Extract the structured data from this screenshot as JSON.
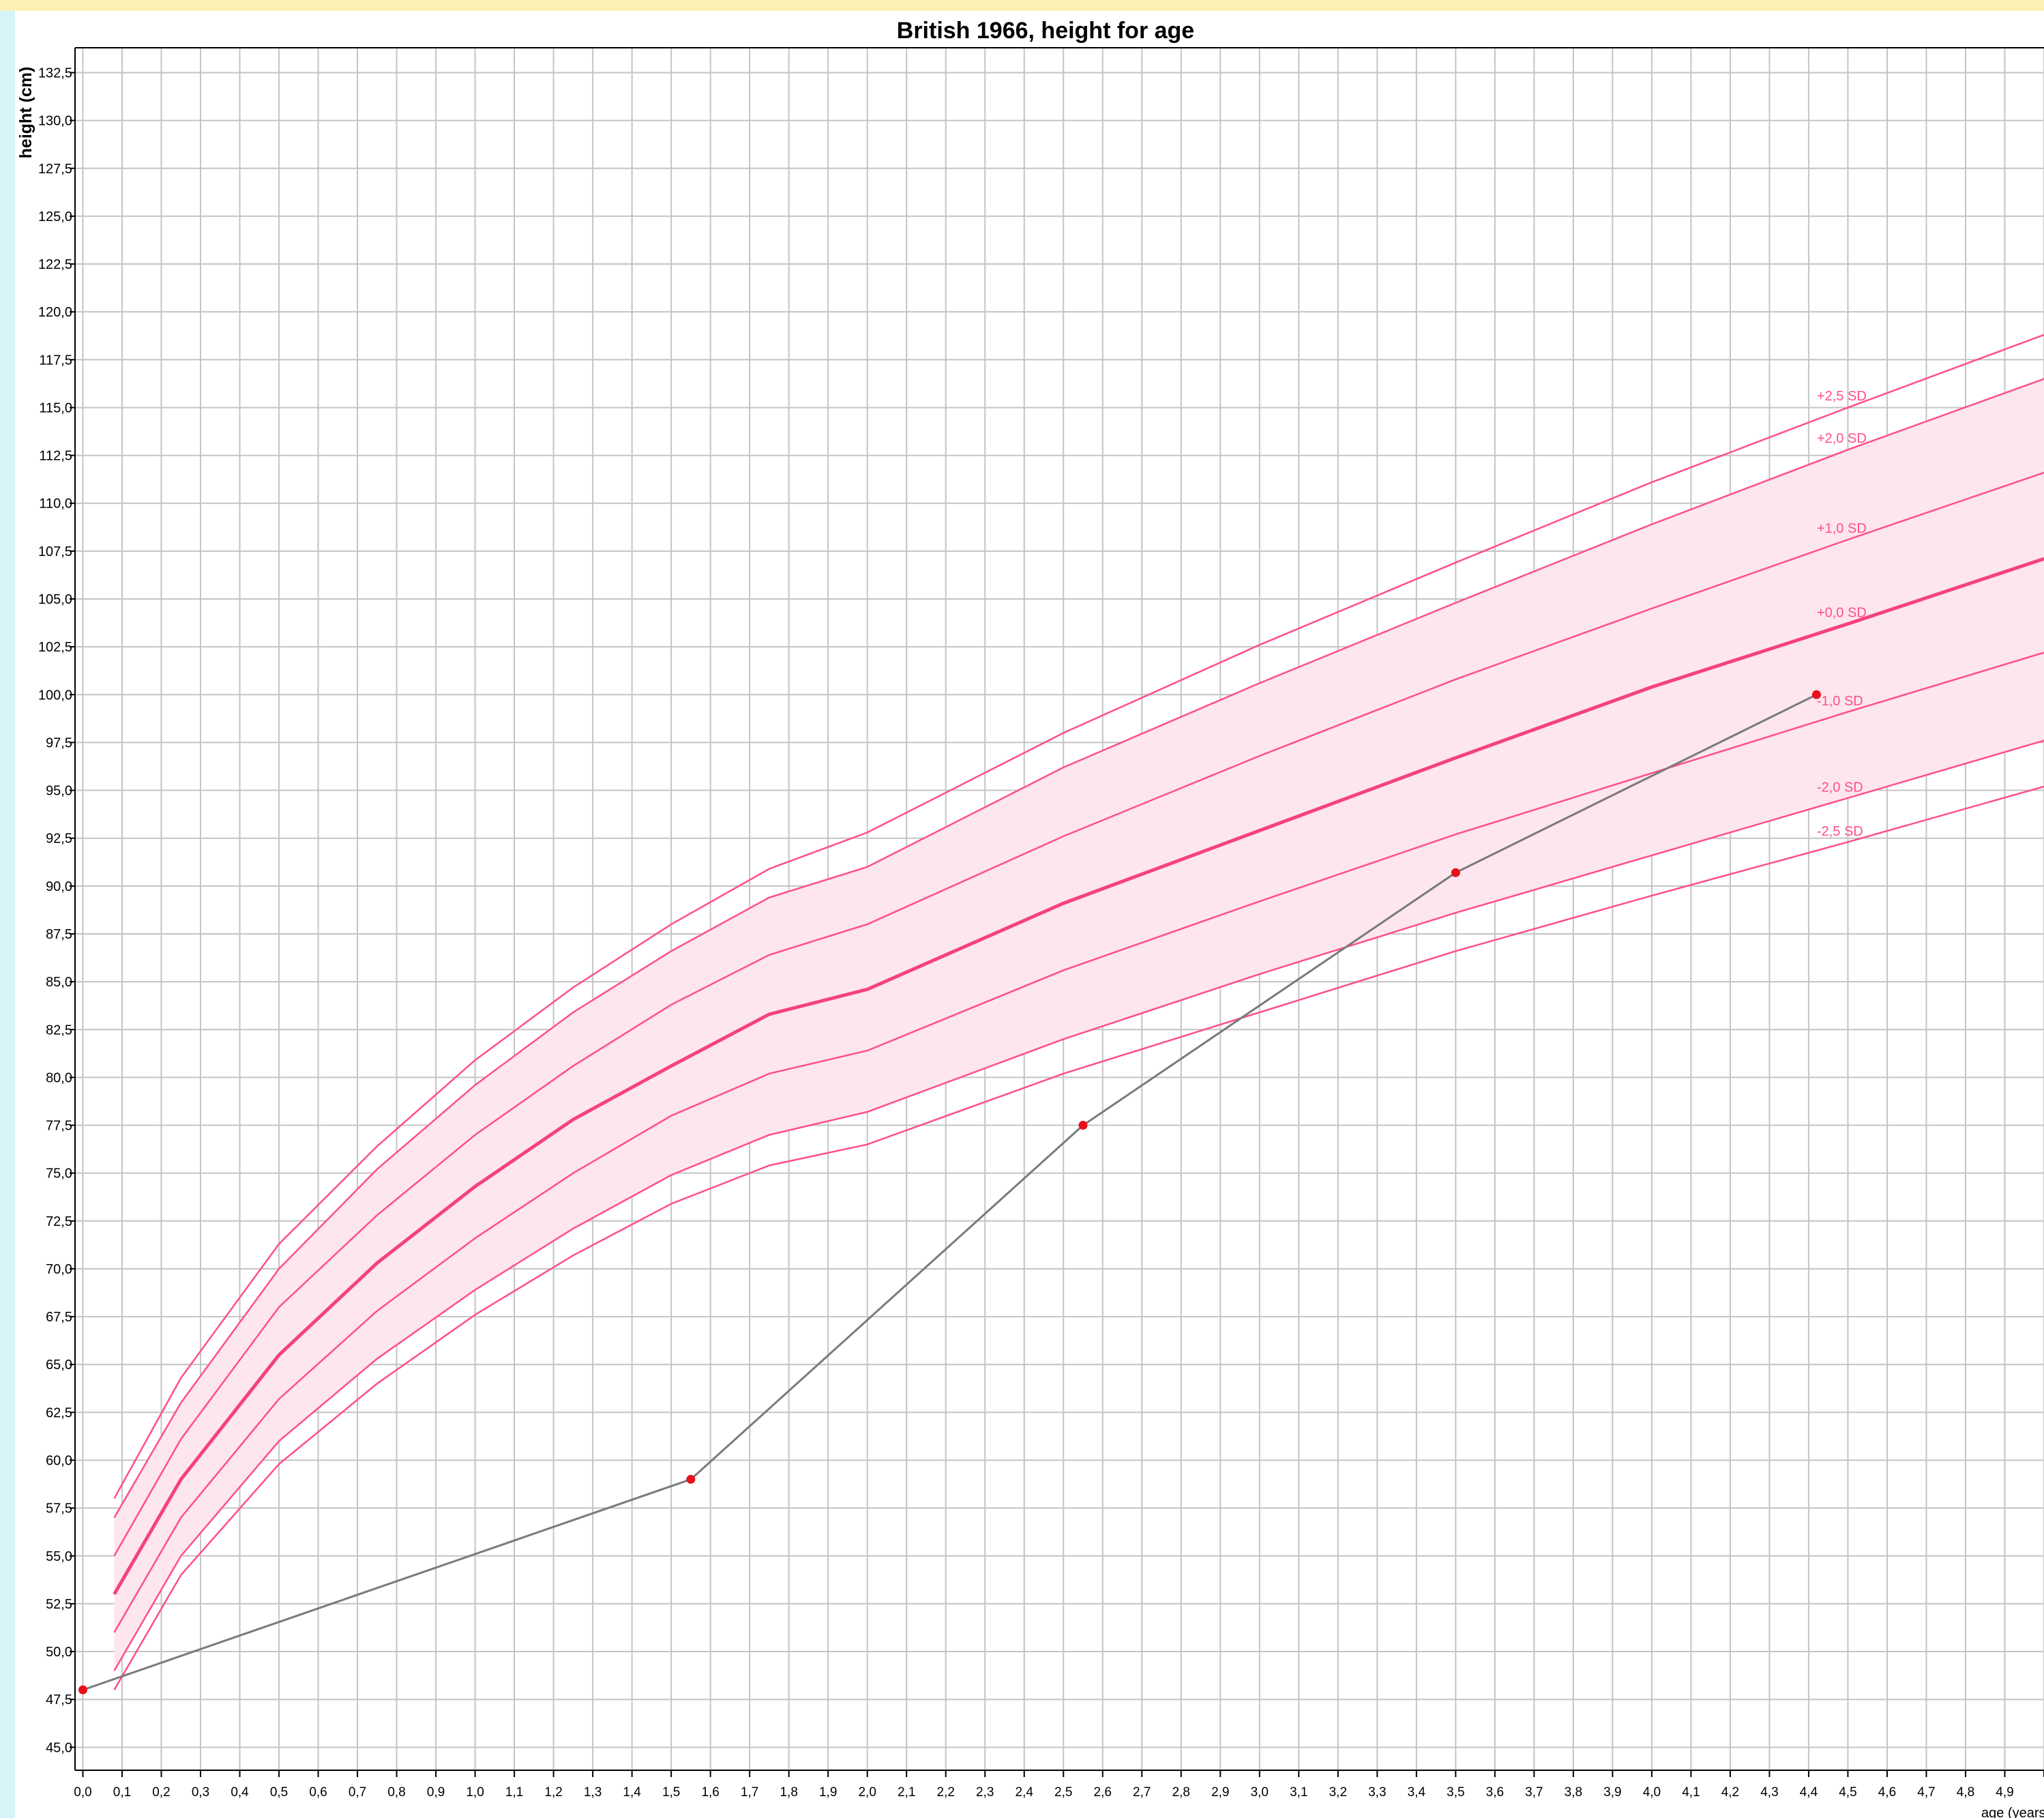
{
  "colors": {
    "top_strip": "#fdf0b4",
    "left_strip": "#d4f4f8",
    "band_fill": "#fde6ee",
    "curve": "#ff4f86",
    "median": "#f5427a",
    "patient_line": "#7a7a7a",
    "patient_point": "#e8101a",
    "grid": "#c4c4c4",
    "axis": "#000000"
  },
  "chart_data": {
    "type": "line",
    "title": "British 1966, height for age",
    "ylabel": "height (cm)",
    "xlabel": "age (years)",
    "xlim": [
      -0.02,
      5.0
    ],
    "ylim": [
      43.8,
      133.8
    ],
    "grid": true,
    "x_ticks": [
      "0,0",
      "0,1",
      "0,2",
      "0,3",
      "0,4",
      "0,5",
      "0,6",
      "0,7",
      "0,8",
      "0,9",
      "1,0",
      "1,1",
      "1,2",
      "1,3",
      "1,4",
      "1,5",
      "1,6",
      "1,7",
      "1,8",
      "1,9",
      "2,0",
      "2,1",
      "2,2",
      "2,3",
      "2,4",
      "2,5",
      "2,6",
      "2,7",
      "2,8",
      "2,9",
      "3,0",
      "3,1",
      "3,2",
      "3,3",
      "3,4",
      "3,5",
      "3,6",
      "3,7",
      "3,8",
      "3,9",
      "4,0",
      "4,1",
      "4,2",
      "4,3",
      "4,4",
      "4,5",
      "4,6",
      "4,7",
      "4,8",
      "4,9"
    ],
    "y_ticks": [
      "45,0",
      "47,5",
      "50,0",
      "52,5",
      "55,0",
      "57,5",
      "60,0",
      "62,5",
      "65,0",
      "67,5",
      "70,0",
      "72,5",
      "75,0",
      "77,5",
      "80,0",
      "82,5",
      "85,0",
      "87,5",
      "90,0",
      "92,5",
      "95,0",
      "97,5",
      "100,0",
      "102,5",
      "105,0",
      "107,5",
      "110,0",
      "112,5",
      "115,0",
      "117,5",
      "120,0",
      "122,5",
      "125,0",
      "127,5",
      "130,0",
      "132,5"
    ],
    "curve_ages": [
      0.08,
      0.25,
      0.5,
      0.75,
      1.0,
      1.25,
      1.5,
      1.75,
      2.0,
      2.5,
      3.0,
      3.5,
      4.0,
      4.5,
      5.0
    ],
    "series": [
      {
        "name": "+2,5 SD",
        "values": [
          58.0,
          64.3,
          71.3,
          76.4,
          80.9,
          84.7,
          88.0,
          90.9,
          92.8,
          98.0,
          102.6,
          106.9,
          111.1,
          115.0,
          118.8
        ]
      },
      {
        "name": "+2,0 SD",
        "values": [
          57.0,
          63.0,
          70.0,
          75.2,
          79.6,
          83.4,
          86.6,
          89.4,
          91.0,
          96.2,
          100.6,
          104.8,
          108.9,
          112.8,
          116.5
        ]
      },
      {
        "name": "+1,0 SD",
        "values": [
          55.0,
          61.1,
          68.0,
          72.8,
          77.0,
          80.6,
          83.8,
          86.4,
          88.0,
          92.6,
          96.8,
          100.8,
          104.5,
          108.1,
          111.6
        ]
      },
      {
        "name": "+0,0 SD",
        "values": [
          53.0,
          59.0,
          65.5,
          70.3,
          74.3,
          77.8,
          80.6,
          83.3,
          84.6,
          89.1,
          92.9,
          96.7,
          100.4,
          103.7,
          107.1
        ]
      },
      {
        "name": "-1,0 SD",
        "values": [
          51.0,
          57.0,
          63.2,
          67.8,
          71.6,
          75.0,
          78.0,
          80.2,
          81.4,
          85.6,
          89.2,
          92.7,
          95.9,
          99.1,
          102.2
        ]
      },
      {
        "name": "-2,0 SD",
        "values": [
          49.0,
          55.0,
          61.0,
          65.3,
          68.9,
          72.1,
          74.9,
          77.0,
          78.2,
          82.0,
          85.4,
          88.6,
          91.6,
          94.6,
          97.6
        ]
      },
      {
        "name": "-2,5 SD",
        "values": [
          48.0,
          54.0,
          59.8,
          64.0,
          67.6,
          70.7,
          73.4,
          75.4,
          76.5,
          80.2,
          83.4,
          86.6,
          89.5,
          92.3,
          95.2
        ]
      }
    ],
    "band": {
      "upper": "+2,0 SD",
      "lower": "-2,0 SD"
    },
    "label_age": 4.52,
    "patient": {
      "x": [
        0.0,
        1.55,
        2.55,
        3.5,
        4.42
      ],
      "y": [
        48.0,
        59.0,
        77.5,
        90.7,
        100.0
      ]
    }
  }
}
